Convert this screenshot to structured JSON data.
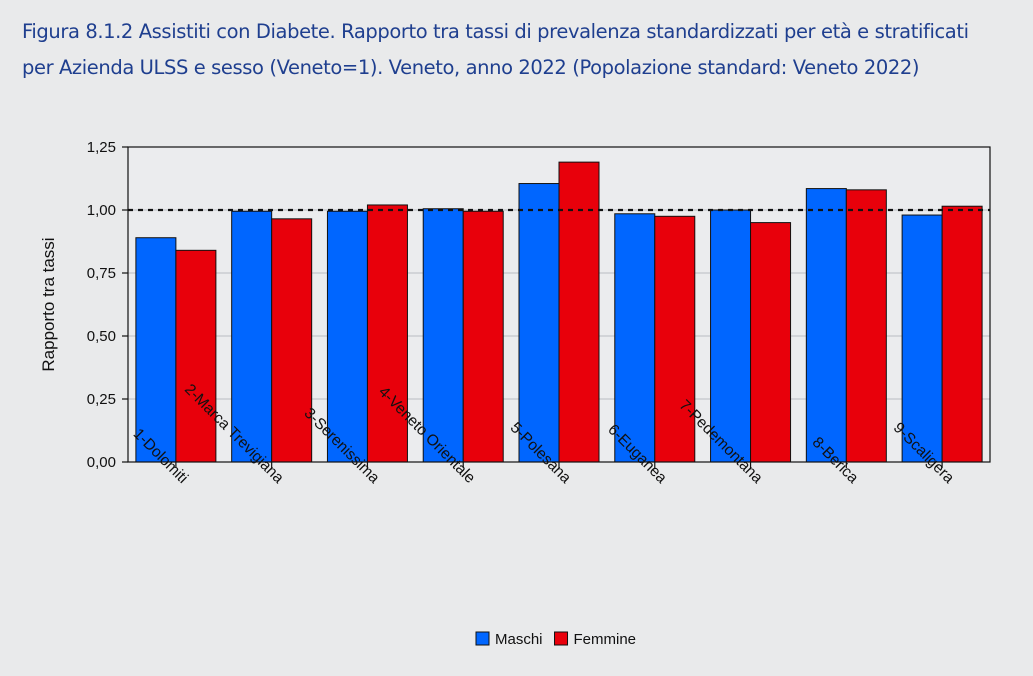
{
  "title": {
    "line1": "Figura 8.1.2 Assistiti con Diabete. Rapporto tra tassi di prevalenza standardizzati per età e stratificati",
    "line2": "per Azienda ULSS e sesso (Veneto=1). Veneto, anno 2022 (Popolazione standard: Veneto 2022)"
  },
  "chart_data": {
    "type": "bar",
    "categories": [
      "1-Dolomiti",
      "2-Marca Trevigiana",
      "3-Serenissima",
      "4-Veneto Orientale",
      "5-Polesana",
      "6-Euganea",
      "7-Pedemontana",
      "8-Berica",
      "9-Scaligera"
    ],
    "series": [
      {
        "name": "Maschi",
        "color": "#0066ff",
        "values": [
          0.89,
          0.995,
          0.995,
          1.005,
          1.105,
          0.985,
          1.0,
          1.085,
          0.98
        ]
      },
      {
        "name": "Femmine",
        "color": "#e8000b",
        "values": [
          0.84,
          0.965,
          1.02,
          0.995,
          1.19,
          0.975,
          0.95,
          1.08,
          1.015
        ]
      }
    ],
    "ylabel": "Rapporto tra tassi",
    "xlabel": "",
    "ylim": [
      0,
      1.25
    ],
    "yticks": [
      0,
      0.25,
      0.5,
      0.75,
      1.0,
      1.25
    ],
    "ytick_labels": [
      "0,00",
      "0,25",
      "0,50",
      "0,75",
      "1,00",
      "1,25"
    ],
    "reference_line": 1.0,
    "grid": true,
    "legend_position": "bottom-center"
  }
}
